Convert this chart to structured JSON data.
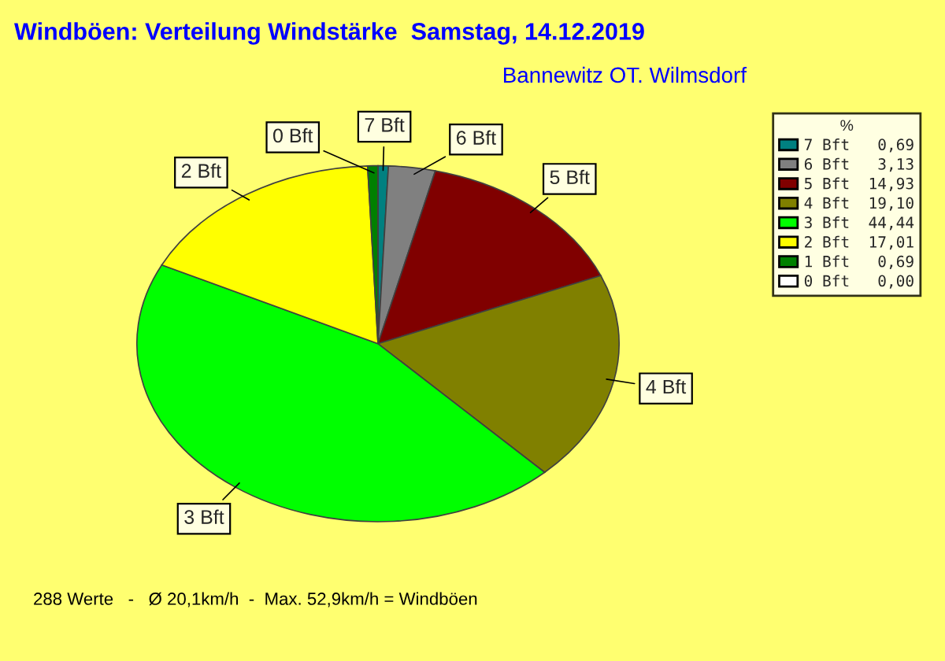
{
  "chart_data": {
    "type": "pie",
    "title": "Windböen: Verteilung Windstärke  Samstag, 14.12.2019",
    "subtitle": "Bannewitz OT. Wilmsdorf",
    "legend_title": "%",
    "legend": "right",
    "categories": [
      "7 Bft",
      "6 Bft",
      "5 Bft",
      "4 Bft",
      "3 Bft",
      "2 Bft",
      "1 Bft",
      "0 Bft"
    ],
    "values": [
      0.69,
      3.13,
      14.93,
      19.1,
      44.44,
      17.01,
      0.69,
      0.0
    ],
    "value_labels": [
      "0,69",
      "3,13",
      "14,93",
      "19,10",
      "44,44",
      "17,01",
      "0,69",
      "0,00"
    ],
    "colors": [
      "#008080",
      "#808080",
      "#800000",
      "#808000",
      "#00ff00",
      "#ffff00",
      "#008000",
      "#ffffff"
    ],
    "annotations": [
      {
        "text": "7 Bft",
        "x": "7 Bft"
      },
      {
        "text": "6 Bft",
        "x": "6 Bft"
      },
      {
        "text": "0 Bft",
        "x": "0 Bft"
      },
      {
        "text": "2 Bft",
        "x": "2 Bft"
      },
      {
        "text": "3 Bft",
        "x": "3 Bft"
      },
      {
        "text": "4 Bft",
        "x": "4 Bft"
      },
      {
        "text": "5 Bft",
        "x": "5 Bft"
      },
      "288 Werte   -   Ø 20,1km/h  -  Max. 52,9km/h = Windböen"
    ]
  }
}
